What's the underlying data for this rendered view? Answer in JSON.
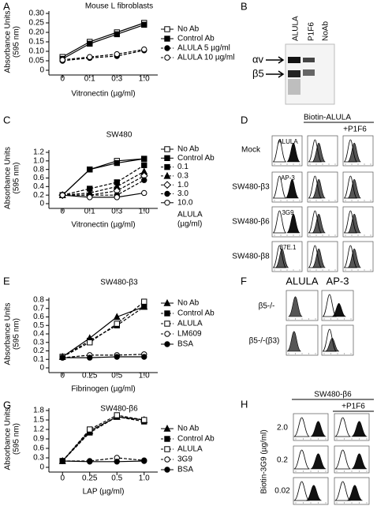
{
  "chart_data": [
    {
      "type": "line",
      "panel": "A",
      "title": "Mouse L fibroblasts",
      "ylabel": [
        "Absorbance Units",
        "(595 nm)"
      ],
      "xlabel": "Vitronectin (µg/ml)",
      "categories": [
        "0",
        "0.1",
        "0.3",
        "1.0"
      ],
      "ylim": [
        0,
        0.3
      ],
      "yticks": [
        0,
        0.05,
        {
          "value": 0.1,
          "label": "0.10"
        },
        0.15,
        {
          "value": 0.2,
          "label": "0.20"
        },
        0.25,
        {
          "value": 0.3,
          "label": "0.30"
        }
      ],
      "legend": "right",
      "series": [
        {
          "name": "No Ab",
          "color": "#000",
          "marker": "square-open",
          "dash": false,
          "values": [
            0.07,
            0.15,
            0.2,
            0.25
          ]
        },
        {
          "name": "Control Ab",
          "color": "#000",
          "marker": "square-filled",
          "dash": false,
          "values": [
            0.06,
            0.14,
            0.19,
            0.24
          ]
        },
        {
          "name": "ALULA 5 µg/ml",
          "color": "#000",
          "marker": "circle-filled",
          "dash": true,
          "values": [
            0.05,
            0.065,
            0.075,
            0.105
          ]
        },
        {
          "name": "ALULA 10 µg/ml",
          "color": "#000",
          "marker": "circle-open",
          "dash": true,
          "values": [
            0.055,
            0.07,
            0.085,
            0.11
          ]
        }
      ]
    },
    {
      "type": "line",
      "panel": "C",
      "title": "SW480",
      "ylabel": [
        "Absorbance Units",
        "(595 nm)"
      ],
      "xlabel": "Vitronectin (µg/ml)",
      "categories": [
        "0",
        "0.1",
        "0.3",
        "1.0"
      ],
      "ylim": [
        0,
        1.2
      ],
      "yticks": [
        0,
        0.2,
        0.4,
        0.6,
        0.8,
        {
          "value": 1,
          "label": "1.0"
        },
        1.2
      ],
      "legend": "right",
      "legend_title": [
        "ALULA",
        "(µg/ml)"
      ],
      "series": [
        {
          "name": "No Ab",
          "color": "#000",
          "marker": "square-open",
          "dash": false,
          "values": [
            0.2,
            0.8,
            1.0,
            1.05
          ]
        },
        {
          "name": "Control Ab",
          "color": "#000",
          "marker": "square-filled",
          "dash": false,
          "values": [
            0.2,
            0.8,
            0.95,
            1.05
          ]
        },
        {
          "name": "0.1",
          "color": "#000",
          "marker": "square-filled",
          "dash": true,
          "values": [
            0.2,
            0.35,
            0.5,
            0.9
          ]
        },
        {
          "name": "0.3",
          "color": "#000",
          "marker": "triangle-filled",
          "dash": true,
          "values": [
            0.2,
            0.25,
            0.4,
            0.75
          ]
        },
        {
          "name": "1.0",
          "color": "#000",
          "marker": "diamond-open",
          "dash": true,
          "values": [
            0.2,
            0.2,
            0.3,
            0.65
          ]
        },
        {
          "name": "3.0",
          "color": "#000",
          "marker": "circle-filled",
          "dash": true,
          "values": [
            0.2,
            0.2,
            0.2,
            0.55
          ]
        },
        {
          "name": "10.0",
          "color": "#000",
          "marker": "circle-open",
          "dash": false,
          "values": [
            0.2,
            0.15,
            0.15,
            0.25
          ]
        }
      ]
    },
    {
      "type": "line",
      "panel": "E",
      "title": "SW480-β3",
      "ylabel": [
        "Absorbance Units",
        "(595 nm)"
      ],
      "xlabel": "Fibrinogen (µg/ml)",
      "categories": [
        "0",
        "0.25",
        "0.5",
        "1.0"
      ],
      "ylim": [
        0,
        0.8
      ],
      "yticks": [
        0,
        0.1,
        0.2,
        0.3,
        0.4,
        0.5,
        0.6,
        0.7,
        0.8
      ],
      "legend": "right",
      "series": [
        {
          "name": "No Ab",
          "color": "#000",
          "marker": "triangle-filled",
          "dash": false,
          "values": [
            0.13,
            0.35,
            0.6,
            0.72
          ]
        },
        {
          "name": "Control Ab",
          "color": "#000",
          "marker": "square-filled",
          "dash": true,
          "values": [
            0.13,
            0.32,
            0.5,
            0.72
          ]
        },
        {
          "name": "ALULA",
          "color": "#000",
          "marker": "square-open",
          "dash": true,
          "values": [
            0.13,
            0.3,
            0.52,
            0.78
          ]
        },
        {
          "name": "LM609",
          "color": "#000",
          "marker": "circle-open",
          "dash": true,
          "values": [
            0.12,
            0.15,
            0.15,
            0.16
          ]
        },
        {
          "name": "BSA",
          "color": "#000",
          "marker": "circle-filled",
          "dash": false,
          "values": [
            0.12,
            0.12,
            0.13,
            0.13
          ]
        }
      ]
    },
    {
      "type": "line",
      "panel": "G",
      "title": "SW480-β6",
      "ylabel": [
        "Absorbance Units",
        "(595 nm)"
      ],
      "xlabel": "LAP (µg/ml)",
      "categories": [
        "0",
        "0.25",
        "0.5",
        "1.0"
      ],
      "ylim": [
        0,
        1.8
      ],
      "yticks": [
        0,
        0.3,
        0.6,
        0.9,
        1.2,
        1.5,
        1.8
      ],
      "legend": "right",
      "series": [
        {
          "name": "No Ab",
          "color": "#000",
          "marker": "triangle-filled",
          "dash": false,
          "values": [
            0.2,
            1.15,
            1.6,
            1.5
          ]
        },
        {
          "name": "Control Ab",
          "color": "#000",
          "marker": "square-filled",
          "dash": true,
          "values": [
            0.2,
            1.1,
            1.6,
            1.45
          ]
        },
        {
          "name": "ALULA",
          "color": "#000",
          "marker": "square-open",
          "dash": true,
          "values": [
            0.2,
            1.2,
            1.65,
            1.5
          ]
        },
        {
          "name": "3G9",
          "color": "#000",
          "marker": "circle-open",
          "dash": true,
          "values": [
            0.2,
            0.2,
            0.3,
            0.22
          ]
        },
        {
          "name": "BSA",
          "color": "#000",
          "marker": "circle-filled",
          "dash": false,
          "values": [
            0.2,
            0.18,
            0.18,
            0.2
          ]
        }
      ]
    }
  ],
  "panels": {
    "B": {
      "label": "B",
      "lanes": [
        "ALULA",
        "P1F6",
        "NoAb"
      ],
      "bands": [
        "αv",
        "β5"
      ]
    },
    "D": {
      "label": "D",
      "header": "Biotin-ALULA",
      "subheader": "+P1F6",
      "rows": [
        "Mock",
        "SW480-β3",
        "SW480-β6",
        "SW480-β8"
      ],
      "antibodies": [
        "ALULA",
        "AP-3",
        "3G9",
        "37E.1"
      ]
    },
    "F": {
      "label": "F",
      "columns": [
        "ALULA",
        "AP-3"
      ],
      "rows": [
        "β5-/-",
        "β5-/-(β3)"
      ]
    },
    "H": {
      "label": "H",
      "header": "SW480-β6",
      "subheader": "+P1F6",
      "ylabel": "Biotin-3G9 (µg/ml)",
      "rows": [
        "2.0",
        "0.2",
        "0.02"
      ]
    }
  }
}
